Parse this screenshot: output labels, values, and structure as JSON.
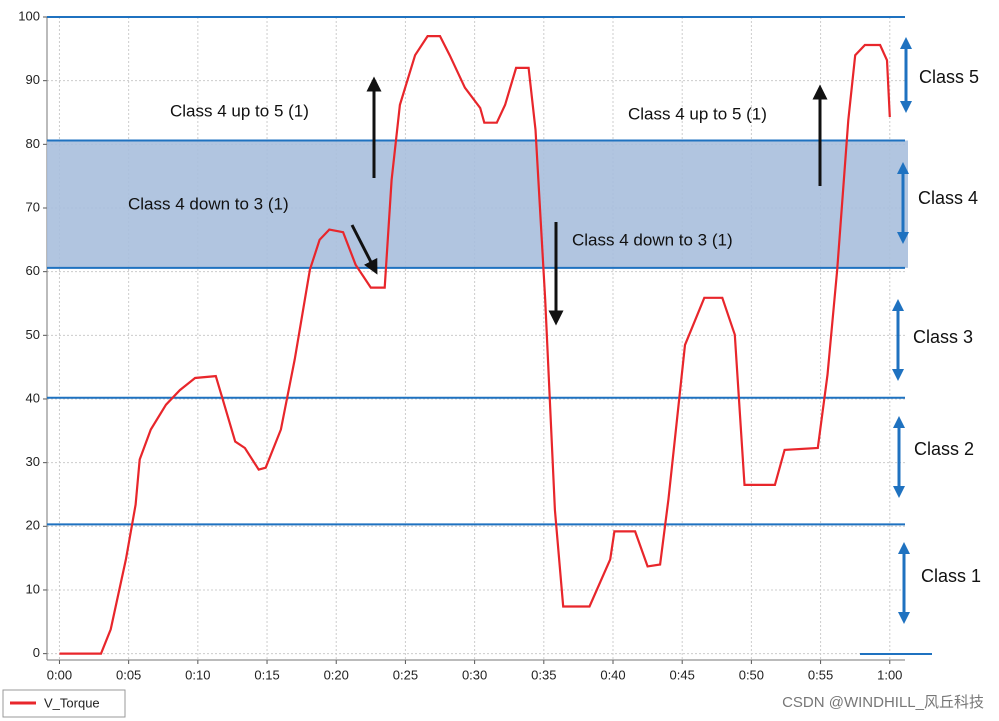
{
  "chart_data": {
    "type": "line",
    "series": [
      {
        "name": "V_Torque",
        "color": "#e8262b",
        "x": [
          0,
          3.0,
          3.7,
          4.8,
          5.5,
          5.8,
          6.6,
          7.7,
          8.7,
          9.8,
          11.3,
          11.8,
          12.7,
          13.4,
          14.4,
          14.9,
          16.0,
          17.0,
          18.1,
          18.8,
          19.5,
          20.5,
          21.4,
          22.5,
          23.5,
          24.0,
          24.6,
          25.7,
          26.6,
          27.5,
          28.2,
          29.3,
          30.4,
          30.7,
          31.6,
          32.2,
          33.0,
          33.9,
          34.4,
          35.1,
          35.8,
          36.4,
          38.3,
          39.8,
          40.1,
          41.6,
          42.5,
          43.4,
          44.0,
          45.2,
          46.6,
          47.9,
          48.8,
          49.5,
          51.7,
          52.4,
          54.8,
          55.5,
          56.2,
          57.0,
          57.5,
          58.2,
          59.3,
          59.8,
          60.0
        ],
        "values": [
          0,
          0,
          3.8,
          14.8,
          23.4,
          30.5,
          35.2,
          39.1,
          41.4,
          43.3,
          43.6,
          39.9,
          33.3,
          32.3,
          28.9,
          29.2,
          35.2,
          46.2,
          60.3,
          65,
          66.6,
          66.2,
          61.1,
          57.5,
          57.5,
          74.4,
          86.2,
          94,
          97,
          97,
          94,
          88.9,
          85.7,
          83.4,
          83.4,
          86.2,
          92,
          92,
          82.3,
          55.6,
          22.6,
          7.4,
          7.4,
          14.8,
          19.2,
          19.2,
          13.7,
          14,
          24.2,
          48.5,
          55.9,
          55.9,
          50.1,
          26.5,
          26.5,
          32,
          32.3,
          43.8,
          60.3,
          83.8,
          94,
          95.6,
          95.6,
          93.2,
          84.3
        ]
      }
    ],
    "xlim": [
      -0.9,
      61.1
    ],
    "ylim": [
      -1,
      100
    ],
    "xticks": [
      {
        "value": 0,
        "label": "0:00"
      },
      {
        "value": 5,
        "label": "0:05"
      },
      {
        "value": 10,
        "label": "0:10"
      },
      {
        "value": 15,
        "label": "0:15"
      },
      {
        "value": 20,
        "label": "0:20"
      },
      {
        "value": 25,
        "label": "0:25"
      },
      {
        "value": 30,
        "label": "0:30"
      },
      {
        "value": 35,
        "label": "0:35"
      },
      {
        "value": 40,
        "label": "0:40"
      },
      {
        "value": 45,
        "label": "0:45"
      },
      {
        "value": 50,
        "label": "0:50"
      },
      {
        "value": 55,
        "label": "0:55"
      },
      {
        "value": 60,
        "label": "1:00"
      }
    ],
    "yticks": [
      0,
      10,
      20,
      30,
      40,
      50,
      60,
      70,
      80,
      90,
      100
    ],
    "grid": true,
    "hlines": [
      20.3,
      40.2,
      60.6,
      80.6,
      100
    ],
    "hline_color": "#1f72c0",
    "band": {
      "from": 60.6,
      "to": 80.6,
      "color": "#a9bfdd"
    },
    "annotations": [
      "Class 4 up to 5  (1)",
      "Class 4 down to 3  (1)",
      "Class 4 down to 3  (1)",
      "Class 4 up to 5  (1)"
    ],
    "classes": [
      "Class 1",
      "Class 2",
      "Class 3",
      "Class 4",
      "Class 5"
    ],
    "watermark": "CSDN @WINDHILL_风丘科技"
  }
}
